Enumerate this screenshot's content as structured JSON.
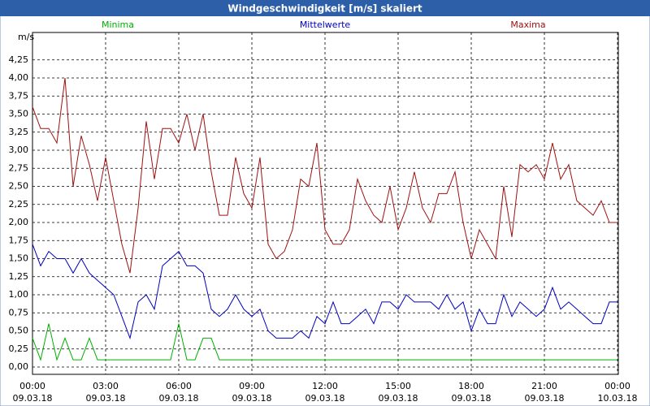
{
  "chart_data": {
    "type": "line",
    "title": "Windgeschwindigkeit [m/s] skaliert",
    "y_label": "m/s",
    "x": [
      0,
      20,
      40,
      60,
      80,
      100,
      120,
      140,
      160,
      180,
      200,
      220,
      240,
      260,
      280,
      300,
      320,
      340,
      360,
      380,
      400,
      420,
      440,
      460,
      480,
      500,
      520,
      540,
      560,
      580,
      600,
      620,
      640,
      660,
      680,
      700,
      720,
      740,
      760,
      780,
      800,
      820,
      840,
      860,
      880,
      900,
      920,
      940,
      960,
      980,
      1000,
      1020,
      1040,
      1060,
      1080,
      1100,
      1120,
      1140,
      1160,
      1180,
      1200,
      1220,
      1240,
      1260,
      1280,
      1300,
      1320,
      1340,
      1360,
      1380,
      1400,
      1420,
      1440
    ],
    "xlim": [
      0,
      1440
    ],
    "xticks": [
      {
        "value": 0,
        "label": "00:00"
      },
      {
        "value": 180,
        "label": "03:00"
      },
      {
        "value": 360,
        "label": "06:00"
      },
      {
        "value": 540,
        "label": "09:00"
      },
      {
        "value": 720,
        "label": "12:00"
      },
      {
        "value": 900,
        "label": "15:00"
      },
      {
        "value": 1080,
        "label": "18:00"
      },
      {
        "value": 1260,
        "label": "21:00"
      },
      {
        "value": 1440,
        "label": "00:00"
      }
    ],
    "xtick_dates": [
      "09.03.18",
      "09.03.18",
      "09.03.18",
      "09.03.18",
      "09.03.18",
      "09.03.18",
      "09.03.18",
      "09.03.18",
      "10.03.18"
    ],
    "ylim": [
      -0.1,
      4.6
    ],
    "yticks": [
      {
        "value": 0,
        "label": "0,00"
      },
      {
        "value": 0.25,
        "label": "0,25"
      },
      {
        "value": 0.5,
        "label": "0,50"
      },
      {
        "value": 0.75,
        "label": "0,75"
      },
      {
        "value": 1,
        "label": "1,00"
      },
      {
        "value": 1.25,
        "label": "1,25"
      },
      {
        "value": 1.5,
        "label": "1,50"
      },
      {
        "value": 1.75,
        "label": "1,75"
      },
      {
        "value": 2,
        "label": "2,00"
      },
      {
        "value": 2.25,
        "label": "2,25"
      },
      {
        "value": 2.5,
        "label": "2,50"
      },
      {
        "value": 2.75,
        "label": "2,75"
      },
      {
        "value": 3,
        "label": "3,00"
      },
      {
        "value": 3.25,
        "label": "3,25"
      },
      {
        "value": 3.5,
        "label": "3,50"
      },
      {
        "value": 3.75,
        "label": "3,75"
      },
      {
        "value": 4,
        "label": "4,00"
      },
      {
        "value": 4.25,
        "label": "4,25"
      }
    ],
    "grid": true,
    "series": [
      {
        "name": "Minima",
        "color": "#00b000",
        "values": [
          0.4,
          0.1,
          0.6,
          0.1,
          0.4,
          0.1,
          0.1,
          0.4,
          0.1,
          0.1,
          0.1,
          0.1,
          0.1,
          0.1,
          0.1,
          0.1,
          0.1,
          0.1,
          0.6,
          0.1,
          0.1,
          0.4,
          0.4,
          0.1,
          0.1,
          0.1,
          0.1,
          0.1,
          0.1,
          0.1,
          0.1,
          0.1,
          0.1,
          0.1,
          0.1,
          0.1,
          0.1,
          0.1,
          0.1,
          0.1,
          0.1,
          0.1,
          0.1,
          0.1,
          0.1,
          0.1,
          0.1,
          0.1,
          0.1,
          0.1,
          0.1,
          0.1,
          0.1,
          0.1,
          0.1,
          0.1,
          0.1,
          0.1,
          0.1,
          0.1,
          0.1,
          0.1,
          0.1,
          0.1,
          0.1,
          0.1,
          0.1,
          0.1,
          0.1,
          0.1,
          0.1,
          0.1,
          0.1
        ]
      },
      {
        "name": "Mittelwerte",
        "color": "#0000c0",
        "values": [
          1.7,
          1.4,
          1.6,
          1.5,
          1.5,
          1.3,
          1.5,
          1.3,
          1.2,
          1.1,
          1.0,
          0.7,
          0.4,
          0.9,
          1.0,
          0.8,
          1.4,
          1.5,
          1.6,
          1.4,
          1.4,
          1.3,
          0.8,
          0.7,
          0.8,
          1.0,
          0.8,
          0.7,
          0.8,
          0.5,
          0.4,
          0.4,
          0.4,
          0.5,
          0.4,
          0.7,
          0.6,
          0.9,
          0.6,
          0.6,
          0.7,
          0.8,
          0.6,
          0.9,
          0.9,
          0.8,
          1.0,
          0.9,
          0.9,
          0.9,
          0.8,
          1.0,
          0.8,
          0.9,
          0.5,
          0.8,
          0.6,
          0.6,
          1.0,
          0.7,
          0.9,
          0.8,
          0.7,
          0.8,
          1.1,
          0.8,
          0.9,
          0.8,
          0.7,
          0.6,
          0.6,
          0.9,
          0.9
        ]
      },
      {
        "name": "Maxima",
        "color": "#a01010",
        "values": [
          3.6,
          3.3,
          3.3,
          3.1,
          4.0,
          2.5,
          3.2,
          2.8,
          2.3,
          2.9,
          2.3,
          1.7,
          1.3,
          2.2,
          3.4,
          2.6,
          3.3,
          3.3,
          3.1,
          3.5,
          3.0,
          3.5,
          2.7,
          2.1,
          2.1,
          2.9,
          2.4,
          2.2,
          2.9,
          1.7,
          1.5,
          1.6,
          1.9,
          2.6,
          2.5,
          3.1,
          1.9,
          1.7,
          1.7,
          1.9,
          2.6,
          2.3,
          2.1,
          2.0,
          2.5,
          1.9,
          2.2,
          2.7,
          2.2,
          2.0,
          2.4,
          2.4,
          2.7,
          2.0,
          1.5,
          1.9,
          1.7,
          1.5,
          2.5,
          1.8,
          2.8,
          2.7,
          2.8,
          2.6,
          3.1,
          2.6,
          2.8,
          2.3,
          2.2,
          2.1,
          2.3,
          2.0,
          2.0
        ]
      }
    ]
  }
}
